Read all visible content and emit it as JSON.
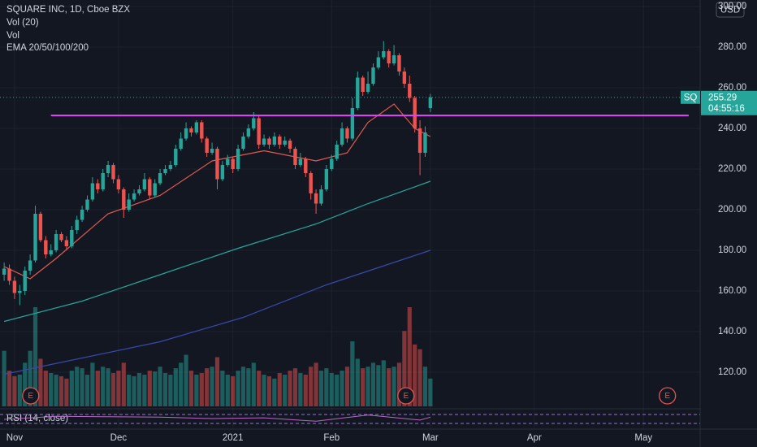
{
  "chart_data": {
    "type": "candlestick",
    "title": "SQUARE INC, 1D, Cboe BZX",
    "indicators": [
      "Vol (20)",
      "Vol",
      "EMA 20/50/100/200"
    ],
    "currency": "USD",
    "open": [
      168,
      171,
      165,
      159,
      160,
      170,
      175,
      198,
      185,
      178,
      180,
      188,
      185,
      182,
      190,
      195,
      200,
      205,
      213,
      210,
      218,
      222,
      215,
      210,
      200,
      205,
      208,
      210,
      215,
      207,
      213,
      218,
      220,
      222,
      230,
      235,
      240,
      238,
      243,
      235,
      228,
      230,
      215,
      222,
      225,
      220,
      230,
      236,
      240,
      245,
      232,
      235,
      232,
      236,
      232,
      234,
      230,
      222,
      225,
      218,
      208,
      203,
      210,
      220,
      225,
      232,
      240,
      235,
      250,
      265,
      258,
      262,
      270,
      275,
      278,
      272,
      276,
      268,
      262,
      255,
      240,
      228,
      250
    ],
    "high": [
      174,
      173,
      167,
      163,
      172,
      178,
      202,
      199,
      187,
      183,
      190,
      189,
      187,
      192,
      197,
      202,
      207,
      216,
      215,
      220,
      224,
      223,
      217,
      211,
      208,
      210,
      212,
      218,
      216,
      215,
      220,
      222,
      224,
      232,
      238,
      243,
      241,
      244,
      244,
      236,
      233,
      231,
      224,
      227,
      226,
      232,
      238,
      242,
      248,
      246,
      237,
      236,
      238,
      237,
      236,
      235,
      231,
      228,
      226,
      219,
      210,
      212,
      222,
      227,
      234,
      243,
      241,
      255,
      268,
      266,
      268,
      272,
      278,
      283,
      279,
      281,
      277,
      270,
      266,
      256,
      244,
      241,
      257
    ],
    "low": [
      165,
      163,
      156,
      153,
      158,
      168,
      174,
      184,
      176,
      177,
      179,
      184,
      180,
      181,
      188,
      194,
      199,
      204,
      208,
      209,
      216,
      213,
      208,
      196,
      199,
      204,
      207,
      209,
      205,
      206,
      212,
      217,
      219,
      221,
      229,
      234,
      236,
      237,
      233,
      226,
      227,
      210,
      214,
      221,
      218,
      219,
      229,
      235,
      239,
      230,
      231,
      230,
      231,
      230,
      231,
      228,
      220,
      221,
      216,
      205,
      198,
      202,
      209,
      219,
      224,
      231,
      233,
      234,
      249,
      256,
      257,
      261,
      269,
      274,
      270,
      271,
      266,
      260,
      253,
      238,
      217,
      226,
      248
    ],
    "close": [
      171,
      165,
      159,
      160,
      170,
      175,
      198,
      185,
      178,
      180,
      188,
      185,
      182,
      190,
      195,
      200,
      205,
      213,
      210,
      218,
      222,
      215,
      210,
      200,
      205,
      208,
      210,
      215,
      207,
      213,
      218,
      220,
      222,
      230,
      235,
      240,
      238,
      243,
      235,
      228,
      230,
      215,
      222,
      225,
      220,
      230,
      236,
      240,
      245,
      232,
      235,
      232,
      236,
      232,
      234,
      230,
      222,
      225,
      218,
      208,
      203,
      210,
      220,
      225,
      232,
      240,
      235,
      250,
      265,
      258,
      262,
      270,
      275,
      278,
      272,
      276,
      268,
      262,
      255,
      240,
      228,
      238,
      255.29
    ],
    "volume": [
      70,
      45,
      38,
      40,
      55,
      70,
      125,
      60,
      45,
      42,
      40,
      38,
      35,
      45,
      50,
      48,
      40,
      55,
      45,
      50,
      48,
      42,
      45,
      55,
      40,
      38,
      42,
      40,
      45,
      44,
      50,
      42,
      40,
      48,
      55,
      65,
      45,
      40,
      42,
      48,
      50,
      62,
      45,
      40,
      38,
      45,
      50,
      48,
      55,
      45,
      40,
      38,
      35,
      42,
      40,
      45,
      48,
      42,
      40,
      50,
      55,
      45,
      48,
      42,
      40,
      45,
      50,
      82,
      60,
      48,
      50,
      55,
      52,
      58,
      48,
      50,
      55,
      95,
      125,
      78,
      72,
      50,
      35
    ],
    "up_color": "#26a69a",
    "down_color": "#ef5350",
    "ema": [
      {
        "color": "#e05a4f",
        "x": [
          0,
          5,
          10,
          20,
          30,
          40,
          50,
          60,
          66,
          70,
          75,
          79,
          82
        ],
        "values": [
          172,
          166,
          176,
          198,
          207,
          224,
          229,
          224,
          228,
          243,
          252,
          240,
          236
        ]
      },
      {
        "color": "#26a69a",
        "x": [
          0,
          15,
          30,
          45,
          60,
          70,
          82
        ],
        "values": [
          145,
          155,
          168,
          181,
          193,
          203,
          214
        ]
      },
      {
        "color": "#3949ab",
        "x": [
          0,
          30,
          46,
          62,
          82
        ],
        "values": [
          119,
          135,
          147,
          163,
          180
        ]
      }
    ],
    "hline": {
      "value": 246.4,
      "x": [
        9,
        131.7
      ],
      "color": "#e040fb"
    },
    "last_price": {
      "symbol": "SQ",
      "value": 255.29,
      "label": "255.29",
      "countdown": "04:55:16"
    },
    "events": [
      {
        "label": "E",
        "x": 5.1
      },
      {
        "label": "E",
        "x": 77.3
      },
      {
        "label": "E",
        "x": 127.6
      }
    ],
    "rsi": {
      "label": "RSI (14, close)",
      "x": [
        0,
        10,
        20,
        30,
        40,
        50,
        60,
        70,
        80,
        82
      ],
      "values": [
        48,
        62,
        60,
        58,
        52,
        55,
        40,
        68,
        45,
        58
      ],
      "levels": [
        70,
        30
      ]
    },
    "xlim": [
      -0.8,
      133.9
    ],
    "xticks": [
      {
        "value": 2,
        "label": "Nov"
      },
      {
        "value": 22,
        "label": "Dec"
      },
      {
        "value": 44,
        "label": "2021"
      },
      {
        "value": 63,
        "label": "Feb"
      },
      {
        "value": 82,
        "label": "Mar"
      },
      {
        "value": 102,
        "label": "Apr"
      },
      {
        "value": 123,
        "label": "May"
      }
    ],
    "ylim": [
      103.2,
      303.2
    ],
    "yticks": [
      {
        "value": 120,
        "label": "120.00"
      },
      {
        "value": 140,
        "label": "140.00"
      },
      {
        "value": 160,
        "label": "160.00"
      },
      {
        "value": 180,
        "label": "180.00"
      },
      {
        "value": 200,
        "label": "200.00"
      },
      {
        "value": 220,
        "label": "220.00"
      },
      {
        "value": 240,
        "label": "240.00"
      },
      {
        "value": 260,
        "label": "260.00"
      },
      {
        "value": 280,
        "label": "280.00"
      },
      {
        "value": 300,
        "label": "300.00"
      }
    ],
    "grid": true
  }
}
